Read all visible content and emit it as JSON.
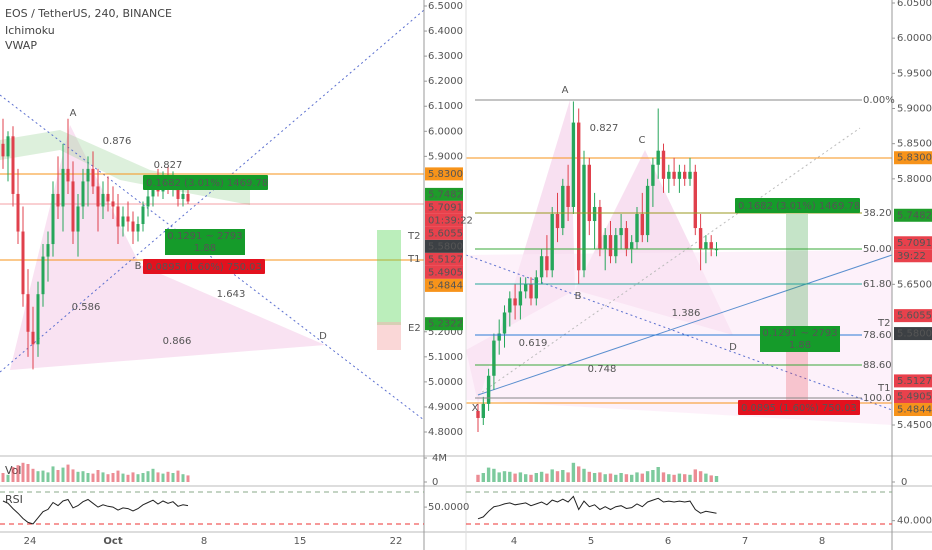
{
  "header": {
    "symbol": "EOS / TetherUS, 240, BINANCE",
    "indicators": [
      "Ichimoku",
      "VWAP"
    ],
    "vol_label": "Vol",
    "rsi_label": "RSI"
  },
  "panels": [
    {
      "name": "left",
      "ylim": [
        4.8,
        6.5
      ],
      "yticks": [
        {
          "value": 6.5,
          "label": "6.5000"
        },
        {
          "value": 6.4,
          "label": "6.4000"
        },
        {
          "value": 6.3,
          "label": "6.3000"
        },
        {
          "value": 6.2,
          "label": "6.2000"
        },
        {
          "value": 6.1,
          "label": "6.1000"
        },
        {
          "value": 6.0,
          "label": "6.0000"
        },
        {
          "value": 5.9,
          "label": "5.9000"
        },
        {
          "value": 5.2,
          "label": "5.2000"
        },
        {
          "value": 5.1,
          "label": "5.1000"
        },
        {
          "value": 5.0,
          "label": "5.0000"
        },
        {
          "value": 4.9,
          "label": "4.9000"
        },
        {
          "value": 4.8,
          "label": "4.8000"
        }
      ],
      "vol_ylim": [
        0,
        4
      ],
      "vol_ticks": [
        {
          "value": 4,
          "label": "4M"
        },
        0
      ],
      "rsi_ylim": [
        20,
        75
      ],
      "rsi_ticks": [
        {
          "value": 50,
          "label": "50.0000"
        }
      ],
      "xticks": [
        "24",
        "Oct",
        "8",
        "15",
        "22"
      ],
      "tags": [
        {
          "value": 5.83,
          "label": "5.8300",
          "color": "#f7931a"
        },
        {
          "value": 5.7482,
          "label": "5.7482",
          "color": "#1e9c2a"
        },
        {
          "value": 5.7091,
          "label": "5.7091",
          "color": "#e8414c"
        },
        {
          "value": 5.6055,
          "label": "5.6055",
          "color": "#e8414c"
        },
        {
          "value": 5.58,
          "label": "5.5800",
          "color": "#3c4044"
        },
        {
          "value": 5.5127,
          "label": "5.5127",
          "color": "#e8414c"
        },
        {
          "value": 5.4905,
          "label": "5.4905",
          "color": "#e8414c"
        },
        {
          "value": 5.4844,
          "label": "5.4844",
          "color": "#f7931a"
        },
        {
          "value": 5.2322,
          "label": "5.2322",
          "color": "#1e9c2a"
        }
      ],
      "countdown": "01:39:22",
      "targets": [
        "T2",
        "T1",
        "E2"
      ],
      "pattern": [
        "A",
        "B",
        "D",
        "0.876",
        "0.827",
        "1.643",
        "0.586",
        "0.866"
      ],
      "position": {
        "profit": "0.1682 (3.01%) 1469.78",
        "ratio": "0.1291 ~ 2793",
        "rr": "1.88",
        "loss": "0.0895 (1.60%) 750.03"
      },
      "candles": [
        [
          5.95,
          6.05,
          5.85,
          5.9
        ],
        [
          5.9,
          6.0,
          5.8,
          5.98
        ],
        [
          5.98,
          6.02,
          5.7,
          5.75
        ],
        [
          5.75,
          5.85,
          5.55,
          5.6
        ],
        [
          5.6,
          5.7,
          5.3,
          5.35
        ],
        [
          5.35,
          5.45,
          5.1,
          5.2
        ],
        [
          5.2,
          5.3,
          5.05,
          5.15
        ],
        [
          5.15,
          5.4,
          5.1,
          5.35
        ],
        [
          5.35,
          5.55,
          5.3,
          5.5
        ],
        [
          5.5,
          5.6,
          5.4,
          5.55
        ],
        [
          5.55,
          5.8,
          5.5,
          5.75
        ],
        [
          5.75,
          5.9,
          5.65,
          5.7
        ],
        [
          5.7,
          5.95,
          5.6,
          5.85
        ],
        [
          5.85,
          6.05,
          5.75,
          5.8
        ],
        [
          5.8,
          5.88,
          5.55,
          5.6
        ],
        [
          5.6,
          5.75,
          5.5,
          5.7
        ],
        [
          5.7,
          5.85,
          5.65,
          5.8
        ],
        [
          5.8,
          5.9,
          5.7,
          5.85
        ],
        [
          5.85,
          5.92,
          5.75,
          5.78
        ],
        [
          5.78,
          5.85,
          5.6,
          5.7
        ],
        [
          5.7,
          5.8,
          5.65,
          5.75
        ],
        [
          5.75,
          5.82,
          5.68,
          5.72
        ],
        [
          5.72,
          5.78,
          5.65,
          5.7
        ],
        [
          5.7,
          5.75,
          5.55,
          5.62
        ],
        [
          5.62,
          5.7,
          5.58,
          5.66
        ],
        [
          5.66,
          5.72,
          5.6,
          5.64
        ],
        [
          5.64,
          5.68,
          5.55,
          5.6
        ],
        [
          5.6,
          5.66,
          5.56,
          5.63
        ],
        [
          5.63,
          5.72,
          5.6,
          5.7
        ],
        [
          5.7,
          5.78,
          5.66,
          5.74
        ],
        [
          5.74,
          5.82,
          5.7,
          5.8
        ],
        [
          5.8,
          5.85,
          5.74,
          5.76
        ],
        [
          5.76,
          5.84,
          5.73,
          5.82
        ],
        [
          5.82,
          5.86,
          5.75,
          5.78
        ],
        [
          5.78,
          5.84,
          5.74,
          5.8
        ],
        [
          5.8,
          5.82,
          5.7,
          5.73
        ],
        [
          5.73,
          5.78,
          5.7,
          5.75
        ],
        [
          5.75,
          5.77,
          5.71,
          5.72
        ]
      ],
      "volume": [
        1.5,
        1.2,
        2.5,
        2.8,
        3.2,
        3.0,
        2.2,
        1.8,
        1.9,
        1.6,
        2.6,
        2.0,
        2.4,
        2.9,
        2.1,
        1.7,
        1.8,
        1.5,
        1.4,
        2.0,
        1.6,
        1.3,
        1.5,
        1.9,
        1.4,
        1.2,
        1.6,
        1.3,
        1.5,
        1.8,
        2.2,
        1.6,
        1.4,
        1.7,
        1.5,
        1.9,
        1.3,
        1.1
      ],
      "rsi": [
        58,
        55,
        48,
        42,
        35,
        30,
        28,
        36,
        44,
        47,
        56,
        52,
        58,
        60,
        49,
        52,
        57,
        60,
        55,
        50,
        53,
        51,
        50,
        46,
        49,
        48,
        45,
        48,
        53,
        56,
        59,
        54,
        58,
        55,
        57,
        51,
        53,
        52
      ]
    },
    {
      "name": "right",
      "ylim": [
        5.45,
        6.05
      ],
      "yticks": [
        {
          "value": 6.05,
          "label": "6.0500"
        },
        {
          "value": 6.0,
          "label": "6.0000"
        },
        {
          "value": 5.95,
          "label": "5.9500"
        },
        {
          "value": 5.9,
          "label": "5.9000"
        },
        {
          "value": 5.85,
          "label": "5.8500"
        },
        {
          "value": 5.8,
          "label": "5.8000"
        },
        {
          "value": 5.65,
          "label": "5.6500"
        },
        {
          "value": 5.45,
          "label": "5.4500"
        }
      ],
      "vol_ylim": [
        0,
        4
      ],
      "vol_ticks": [
        0
      ],
      "rsi_ylim": [
        30,
        75
      ],
      "rsi_ticks": [
        {
          "value": 40,
          "label": "40.0000"
        }
      ],
      "xticks": [
        "4",
        "5",
        "6",
        "7",
        "8"
      ],
      "tags": [
        {
          "value": 5.83,
          "label": "5.8300",
          "color": "#f7931a"
        },
        {
          "value": 5.7482,
          "label": "5.7482",
          "color": "#1e9c2a"
        },
        {
          "value": 5.7091,
          "label": "5.7091",
          "color": "#e8414c"
        },
        {
          "value": 5.6055,
          "label": "5.6055",
          "color": "#e8414c"
        },
        {
          "value": 5.58,
          "label": "5.5800",
          "color": "#3c4044"
        },
        {
          "value": 5.5127,
          "label": "5.5127",
          "color": "#e8414c"
        },
        {
          "value": 5.4905,
          "label": "5.4905",
          "color": "#e8414c"
        },
        {
          "value": 5.4844,
          "label": "5.4844",
          "color": "#f7931a"
        }
      ],
      "countdown": "39:22",
      "targets": [
        "T2",
        "T1"
      ],
      "pattern": [
        "X",
        "A",
        "B",
        "C",
        "D",
        "0.827",
        "1.386",
        "0.619",
        "0.748"
      ],
      "fib_levels": [
        "0.00%",
        "38.20",
        "50.00",
        "61.80",
        "78.60",
        "88.60",
        "100.0"
      ],
      "position": {
        "profit": "0.1682 (3.01%) 1469.78",
        "ratio": "0.1291 ~ 2793",
        "rr": "1.88",
        "loss": "0.0895 (1.60%) 750.03"
      },
      "candles": [
        [
          5.47,
          5.48,
          5.44,
          5.46
        ],
        [
          5.46,
          5.49,
          5.45,
          5.48
        ],
        [
          5.48,
          5.53,
          5.47,
          5.52
        ],
        [
          5.52,
          5.58,
          5.5,
          5.57
        ],
        [
          5.57,
          5.6,
          5.55,
          5.58
        ],
        [
          5.58,
          5.62,
          5.56,
          5.61
        ],
        [
          5.61,
          5.64,
          5.59,
          5.63
        ],
        [
          5.63,
          5.65,
          5.6,
          5.62
        ],
        [
          5.62,
          5.66,
          5.6,
          5.64
        ],
        [
          5.64,
          5.66,
          5.63,
          5.65
        ],
        [
          5.65,
          5.66,
          5.62,
          5.63
        ],
        [
          5.63,
          5.67,
          5.62,
          5.66
        ],
        [
          5.66,
          5.7,
          5.65,
          5.69
        ],
        [
          5.69,
          5.72,
          5.66,
          5.67
        ],
        [
          5.67,
          5.76,
          5.66,
          5.75
        ],
        [
          5.75,
          5.78,
          5.71,
          5.73
        ],
        [
          5.73,
          5.8,
          5.72,
          5.79
        ],
        [
          5.79,
          5.82,
          5.74,
          5.76
        ],
        [
          5.76,
          5.91,
          5.75,
          5.88
        ],
        [
          5.88,
          5.9,
          5.65,
          5.67
        ],
        [
          5.67,
          5.84,
          5.66,
          5.82
        ],
        [
          5.82,
          5.83,
          5.72,
          5.74
        ],
        [
          5.74,
          5.78,
          5.7,
          5.76
        ],
        [
          5.76,
          5.77,
          5.69,
          5.7
        ],
        [
          5.7,
          5.73,
          5.67,
          5.72
        ],
        [
          5.72,
          5.74,
          5.68,
          5.69
        ],
        [
          5.69,
          5.73,
          5.68,
          5.72
        ],
        [
          5.72,
          5.75,
          5.7,
          5.73
        ],
        [
          5.73,
          5.74,
          5.69,
          5.7
        ],
        [
          5.7,
          5.72,
          5.68,
          5.71
        ],
        [
          5.71,
          5.76,
          5.7,
          5.75
        ],
        [
          5.75,
          5.78,
          5.71,
          5.72
        ],
        [
          5.72,
          5.8,
          5.71,
          5.79
        ],
        [
          5.79,
          5.83,
          5.76,
          5.82
        ],
        [
          5.82,
          5.9,
          5.8,
          5.84
        ],
        [
          5.84,
          5.85,
          5.78,
          5.8
        ],
        [
          5.8,
          5.82,
          5.78,
          5.81
        ],
        [
          5.81,
          5.83,
          5.79,
          5.8
        ],
        [
          5.8,
          5.82,
          5.78,
          5.81
        ],
        [
          5.81,
          5.82,
          5.79,
          5.8
        ],
        [
          5.8,
          5.83,
          5.79,
          5.81
        ],
        [
          5.81,
          5.82,
          5.72,
          5.73
        ],
        [
          5.73,
          5.75,
          5.67,
          5.7
        ],
        [
          5.7,
          5.72,
          5.68,
          5.71
        ],
        [
          5.71,
          5.72,
          5.69,
          5.7
        ],
        [
          5.7,
          5.71,
          5.69,
          5.7
        ]
      ],
      "volume": [
        1.2,
        1.5,
        2.4,
        2.2,
        1.6,
        1.8,
        1.7,
        1.4,
        1.6,
        1.3,
        1.2,
        1.5,
        1.7,
        1.4,
        2.1,
        1.8,
        2.0,
        1.6,
        3.2,
        2.6,
        2.2,
        1.7,
        1.5,
        1.6,
        1.3,
        1.4,
        1.2,
        1.5,
        1.3,
        1.2,
        1.6,
        1.4,
        1.8,
        2.0,
        2.5,
        1.6,
        1.3,
        1.2,
        1.4,
        1.3,
        1.2,
        2.1,
        1.8,
        1.4,
        1.1,
        1.0
      ],
      "rsi": [
        42,
        44,
        50,
        55,
        56,
        58,
        59,
        57,
        58,
        59,
        56,
        58,
        60,
        57,
        62,
        60,
        63,
        60,
        66,
        52,
        61,
        55,
        57,
        52,
        55,
        52,
        55,
        56,
        53,
        54,
        58,
        55,
        60,
        62,
        64,
        60,
        61,
        60,
        61,
        60,
        61,
        52,
        48,
        50,
        49,
        48
      ]
    }
  ]
}
